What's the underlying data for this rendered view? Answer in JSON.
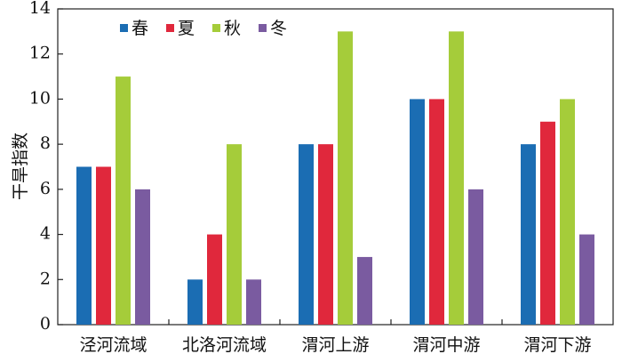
{
  "chart_data": {
    "type": "bar",
    "y_label": "干旱指数",
    "categories": [
      "泾河流域",
      "北洛河流域",
      "渭河上游",
      "渭河中游",
      "渭河下游"
    ],
    "series": [
      {
        "name": "春",
        "color": "#1b6db3",
        "values": [
          7,
          2,
          8,
          10,
          8
        ]
      },
      {
        "name": "夏",
        "color": "#e0283c",
        "values": [
          7,
          4,
          8,
          10,
          9
        ]
      },
      {
        "name": "秋",
        "color": "#a5cc3a",
        "values": [
          11,
          8,
          13,
          13,
          10
        ]
      },
      {
        "name": "冬",
        "color": "#7a5ba0",
        "values": [
          6,
          2,
          3,
          6,
          4
        ]
      }
    ],
    "ylim": [
      0,
      14
    ],
    "yticks": [
      0,
      2,
      4,
      6,
      8,
      10,
      12,
      14
    ],
    "legend": "top-left"
  }
}
